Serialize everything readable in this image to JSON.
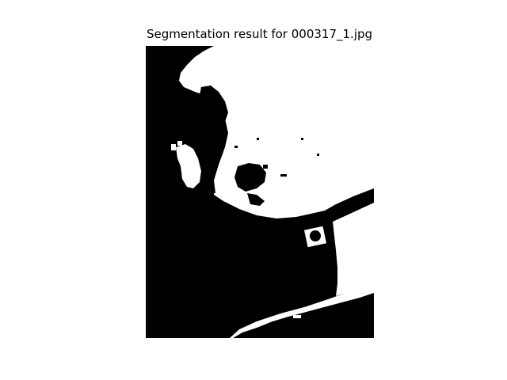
{
  "figure": {
    "title": "Segmentation result for 000317_1.jpg"
  },
  "colors": {
    "mask_background": "#000000",
    "mask_foreground": "#ffffff",
    "page_background": "#ffffff"
  }
}
